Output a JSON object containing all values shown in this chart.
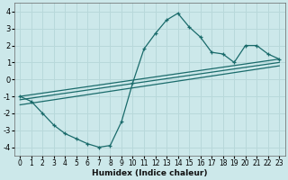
{
  "xlabel": "Humidex (Indice chaleur)",
  "bg_color": "#cce8ea",
  "grid_color": "#b8d8da",
  "line_color": "#1a6b6b",
  "xlim": [
    -0.5,
    23.5
  ],
  "ylim": [
    -4.5,
    4.5
  ],
  "yticks": [
    -4,
    -3,
    -2,
    -1,
    0,
    1,
    2,
    3,
    4
  ],
  "xticks": [
    0,
    1,
    2,
    3,
    4,
    5,
    6,
    7,
    8,
    9,
    10,
    11,
    12,
    13,
    14,
    15,
    16,
    17,
    18,
    19,
    20,
    21,
    22,
    23
  ],
  "main_x": [
    0,
    1,
    2,
    3,
    4,
    5,
    6,
    7,
    8,
    9,
    10,
    11,
    12,
    13,
    14,
    15,
    16,
    17,
    18,
    19,
    20,
    21,
    22,
    23
  ],
  "main_y": [
    -1.0,
    -1.3,
    -2.0,
    -2.7,
    -3.2,
    -3.5,
    -3.8,
    -4.0,
    -3.9,
    -2.5,
    -0.2,
    1.8,
    2.7,
    3.5,
    3.9,
    3.1,
    2.5,
    1.6,
    1.5,
    1.0,
    2.0,
    2.0,
    1.5,
    1.2
  ],
  "line1_x": [
    0,
    23
  ],
  "line1_y": [
    -1.0,
    1.2
  ],
  "line2_x": [
    0,
    23
  ],
  "line2_y": [
    -1.2,
    1.0
  ],
  "line3_x": [
    0,
    23
  ],
  "line3_y": [
    -1.5,
    0.8
  ]
}
